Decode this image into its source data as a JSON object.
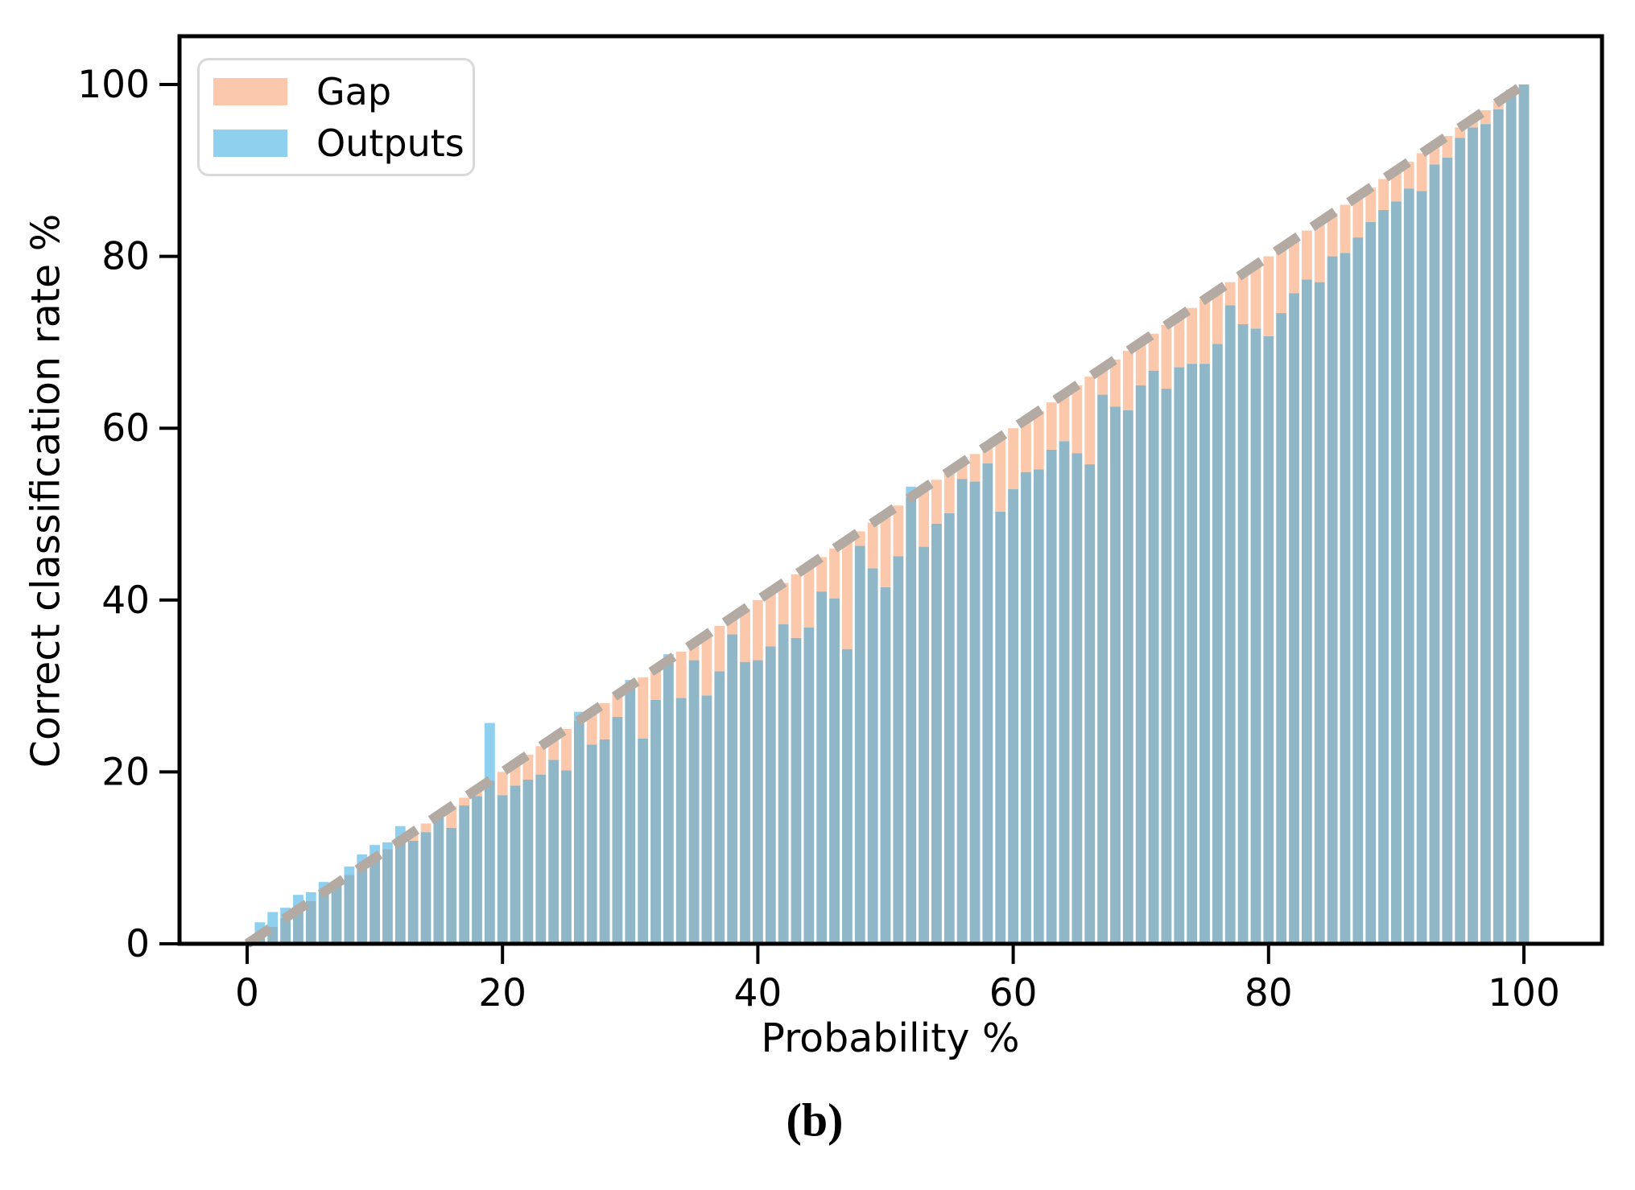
{
  "figure": {
    "caption": "(b)"
  },
  "chart_data": {
    "type": "bar",
    "title": "",
    "xlabel": "Probability %",
    "ylabel": "Correct classification rate %",
    "xlim": [
      -5.3,
      106.1
    ],
    "ylim": [
      0,
      105.7
    ],
    "grid": false,
    "legend_position": "upper-left",
    "xticks": [
      0,
      20,
      40,
      60,
      80,
      100
    ],
    "yticks": [
      0,
      20,
      40,
      60,
      80,
      100
    ],
    "colors": {
      "gap": "#FBC8AB",
      "outputs": "#8FD0EF",
      "outputs_over_gap": "#8FB7C8",
      "reference_line": "#B3ABA3",
      "axis": "#000000"
    },
    "reference_line": {
      "style": "dashed",
      "from": [
        0,
        0
      ],
      "to": [
        100,
        100
      ]
    },
    "legend": [
      {
        "label": "Gap"
      },
      {
        "label": "Outputs"
      }
    ],
    "x": [
      1,
      2,
      3,
      4,
      5,
      6,
      7,
      8,
      9,
      10,
      11,
      12,
      13,
      14,
      15,
      16,
      17,
      18,
      19,
      20,
      21,
      22,
      23,
      24,
      25,
      26,
      27,
      28,
      29,
      30,
      31,
      32,
      33,
      34,
      35,
      36,
      37,
      38,
      39,
      40,
      41,
      42,
      43,
      44,
      45,
      46,
      47,
      48,
      49,
      50,
      51,
      52,
      53,
      54,
      55,
      56,
      57,
      58,
      59,
      60,
      61,
      62,
      63,
      64,
      65,
      66,
      67,
      68,
      69,
      70,
      71,
      72,
      73,
      74,
      75,
      76,
      77,
      78,
      79,
      80,
      81,
      82,
      83,
      84,
      85,
      86,
      87,
      88,
      89,
      90,
      91,
      92,
      93,
      94,
      95,
      96,
      97,
      98,
      99,
      100
    ],
    "series": [
      {
        "name": "Gap",
        "values": [
          0,
          0,
          0,
          0,
          0,
          0,
          0,
          0,
          0,
          0,
          0,
          0,
          1.0,
          1.0,
          0,
          2.5,
          0.9,
          0.8,
          0,
          2.7,
          2.6,
          2.9,
          3.3,
          2.6,
          4.8,
          0,
          3.8,
          4.2,
          2.6,
          0,
          7.1,
          3.6,
          0,
          5.4,
          2.0,
          7.1,
          5.3,
          2.0,
          6.2,
          7.0,
          6.4,
          4.8,
          7.4,
          7.2,
          4.0,
          5.8,
          12.7,
          1.7,
          5.3,
          8.5,
          5.9,
          0,
          6.8,
          5.1,
          4.9,
          1.9,
          3.2,
          2.1,
          8.7,
          7.1,
          6.1,
          6.8,
          5.5,
          5.5,
          7.9,
          10.2,
          3.1,
          5.5,
          6.9,
          5.0,
          4.3,
          7.4,
          5.9,
          6.5,
          7.5,
          6.2,
          2.7,
          5.9,
          7.4,
          9.3,
          7.6,
          6.3,
          5.7,
          7.0,
          5.0,
          5.6,
          4.8,
          4.0,
          3.6,
          3.6,
          3.1,
          4.4,
          2.3,
          2.5,
          1.2,
          1.0,
          1.6,
          0.9,
          0,
          0
        ]
      },
      {
        "name": "Outputs",
        "values": [
          2.5,
          3.7,
          4.2,
          5.7,
          6.0,
          7.2,
          7.0,
          9.0,
          10.4,
          11.5,
          11.8,
          13.7,
          12.0,
          13.0,
          15.3,
          13.5,
          16.1,
          17.2,
          25.7,
          17.3,
          18.4,
          19.1,
          19.7,
          21.4,
          20.2,
          27.0,
          23.2,
          23.8,
          26.4,
          30.7,
          23.9,
          28.4,
          33.7,
          28.6,
          33.0,
          28.9,
          31.7,
          36.0,
          32.8,
          33.0,
          34.6,
          37.2,
          35.6,
          36.8,
          41.0,
          40.2,
          34.3,
          46.3,
          43.7,
          41.5,
          45.1,
          53.2,
          46.2,
          48.9,
          50.1,
          54.1,
          53.8,
          55.9,
          50.3,
          52.9,
          54.9,
          55.2,
          57.5,
          58.5,
          57.1,
          55.8,
          63.9,
          62.5,
          62.1,
          65.0,
          66.7,
          64.6,
          67.1,
          67.5,
          67.5,
          69.8,
          74.3,
          72.1,
          71.6,
          70.7,
          73.4,
          75.7,
          77.3,
          77.0,
          80.0,
          80.4,
          82.2,
          84.0,
          85.4,
          86.4,
          87.9,
          87.6,
          90.7,
          91.5,
          93.8,
          95.0,
          95.4,
          97.1,
          99.4,
          100.0
        ]
      }
    ]
  }
}
